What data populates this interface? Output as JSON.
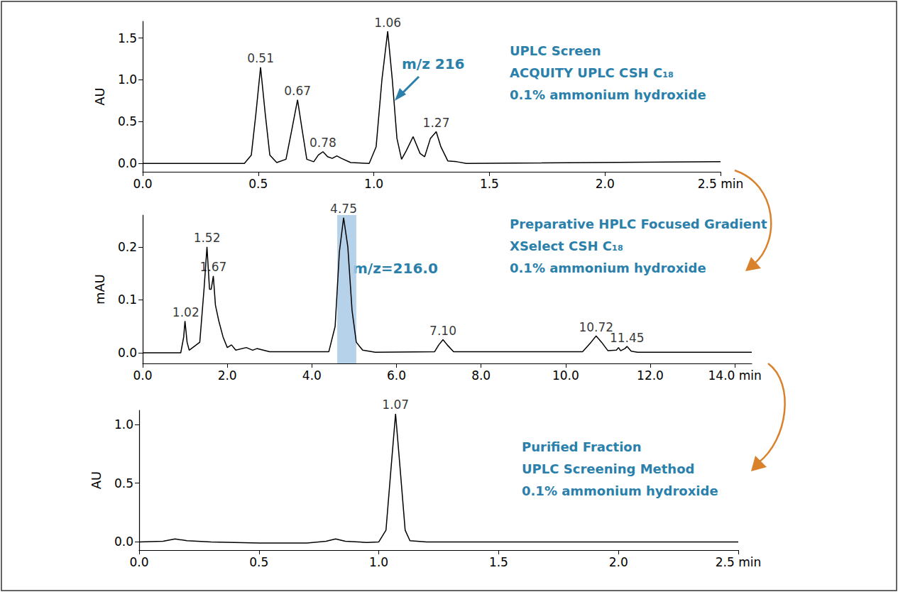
{
  "chart_data": [
    {
      "type": "line",
      "title": "UPLC Screen",
      "subtitle": [
        "ACQUITY UPLC CSH C₁₈",
        "0.1% ammonium hydroxide"
      ],
      "annotation": "m/z 216",
      "ylabel": "AU",
      "color": "#000000",
      "xlim": [
        0,
        2.5
      ],
      "xticks": [
        {
          "value": 0,
          "label": "0.0"
        },
        {
          "value": 0.5,
          "label": "0.5"
        },
        {
          "value": 1,
          "label": "1.0"
        },
        {
          "value": 1.5,
          "label": "1.5"
        },
        {
          "value": 2,
          "label": "2.0"
        },
        {
          "value": 2.5,
          "label": "2.5 min"
        }
      ],
      "ylim": [
        -0.1,
        1.7
      ],
      "yticks": [
        {
          "value": 0,
          "label": "0.0"
        },
        {
          "value": 0.5,
          "label": "0.5"
        },
        {
          "value": 1,
          "label": "1.0"
        },
        {
          "value": 1.5,
          "label": "1.5"
        }
      ],
      "x": [
        0,
        0.44,
        0.47,
        0.49,
        0.51,
        0.53,
        0.55,
        0.58,
        0.62,
        0.645,
        0.67,
        0.69,
        0.71,
        0.74,
        0.76,
        0.78,
        0.8,
        0.82,
        0.84,
        0.86,
        0.9,
        0.98,
        1.01,
        1.035,
        1.06,
        1.08,
        1.1,
        1.12,
        1.14,
        1.17,
        1.2,
        1.22,
        1.245,
        1.27,
        1.29,
        1.32,
        1.36,
        1.4,
        2.5
      ],
      "values": [
        0,
        0,
        0.1,
        0.6,
        1.15,
        0.6,
        0.1,
        0.01,
        0.05,
        0.4,
        0.76,
        0.4,
        0.05,
        0.02,
        0.1,
        0.14,
        0.08,
        0.06,
        0.09,
        0.06,
        0.01,
        0,
        0.2,
        1.0,
        1.58,
        1.0,
        0.3,
        0.05,
        0.15,
        0.32,
        0.12,
        0.08,
        0.3,
        0.38,
        0.2,
        0.03,
        0.02,
        0,
        0.02
      ],
      "peaks": [
        {
          "x": 0.51,
          "y": 1.15,
          "label": "0.51"
        },
        {
          "x": 0.67,
          "y": 0.76,
          "label": "0.67"
        },
        {
          "x": 0.78,
          "y": 0.14,
          "label": "0.78"
        },
        {
          "x": 1.06,
          "y": 1.58,
          "label": "1.06"
        },
        {
          "x": 1.27,
          "y": 0.38,
          "label": "1.27"
        }
      ]
    },
    {
      "type": "line",
      "title": "Preparative HPLC Focused Gradient",
      "subtitle": [
        "XSelect CSH C₁₈",
        "0.1% ammonium hydroxide"
      ],
      "annotation": "m/z=216.0",
      "ylabel": "mAU",
      "color": "#000000",
      "fraction": [
        4.6,
        5.05
      ],
      "xlim": [
        0,
        14.4
      ],
      "xticks": [
        {
          "value": 0,
          "label": "0.0"
        },
        {
          "value": 2,
          "label": "2.0"
        },
        {
          "value": 4,
          "label": "4.0"
        },
        {
          "value": 6,
          "label": "6.0"
        },
        {
          "value": 8,
          "label": "8.0"
        },
        {
          "value": 10,
          "label": "10.0"
        },
        {
          "value": 12,
          "label": "12.0"
        },
        {
          "value": 14,
          "label": "14.0 min"
        }
      ],
      "ylim": [
        -0.02,
        0.26
      ],
      "yticks": [
        {
          "value": 0,
          "label": "0.0"
        },
        0.1,
        0.2
      ],
      "x": [
        0,
        0.9,
        0.97,
        1.0,
        1.05,
        1.1,
        1.35,
        1.45,
        1.52,
        1.58,
        1.62,
        1.67,
        1.72,
        1.8,
        1.9,
        2.0,
        2.1,
        2.2,
        2.45,
        2.6,
        2.7,
        3.0,
        4.4,
        4.55,
        4.65,
        4.75,
        4.85,
        4.95,
        5.05,
        5.2,
        5.5,
        6.9,
        7.0,
        7.1,
        7.2,
        7.35,
        10.4,
        10.6,
        10.72,
        10.85,
        11.0,
        11.2,
        11.25,
        11.3,
        11.4,
        11.45,
        11.55,
        11.7,
        14.4
      ],
      "values": [
        0,
        0,
        0.03,
        0.06,
        0.02,
        0.005,
        0.02,
        0.12,
        0.2,
        0.12,
        0.12,
        0.145,
        0.09,
        0.06,
        0.03,
        0.01,
        0.015,
        0.005,
        0.01,
        0.005,
        0.008,
        0.002,
        0.002,
        0.05,
        0.19,
        0.255,
        0.2,
        0.08,
        0.02,
        0.005,
        0.001,
        0.002,
        0.015,
        0.025,
        0.015,
        0.002,
        0.002,
        0.02,
        0.032,
        0.02,
        0.004,
        0.005,
        0.01,
        0.004,
        0.008,
        0.012,
        0.003,
        0.001,
        0.001
      ],
      "peaks": [
        {
          "x": 1.02,
          "y": 0.06,
          "label": "1.02"
        },
        {
          "x": 1.52,
          "y": 0.2,
          "label": "1.52"
        },
        {
          "x": 1.67,
          "y": 0.145,
          "label": "1.67"
        },
        {
          "x": 4.75,
          "y": 0.255,
          "label": "4.75"
        },
        {
          "x": 7.1,
          "y": 0.025,
          "label": "7.10"
        },
        {
          "x": 10.72,
          "y": 0.032,
          "label": "10.72"
        },
        {
          "x": 11.45,
          "y": 0.012,
          "label": "11.45"
        }
      ]
    },
    {
      "type": "line",
      "title": "Purified Fraction",
      "subtitle": [
        "UPLC Screening Method",
        "0.1% ammonium hydroxide"
      ],
      "ylabel": "AU",
      "color": "#000000",
      "xlim": [
        0,
        2.5
      ],
      "xticks": [
        {
          "value": 0,
          "label": "0.0"
        },
        {
          "value": 0.5,
          "label": "0.5"
        },
        {
          "value": 1,
          "label": "1.0"
        },
        {
          "value": 1.5,
          "label": "1.5"
        },
        {
          "value": 2,
          "label": "2.0"
        },
        {
          "value": 2.5,
          "label": "2.5 min"
        }
      ],
      "ylim": [
        -0.07,
        1.12
      ],
      "yticks": [
        {
          "value": 0,
          "label": "0.0"
        },
        {
          "value": 0.5,
          "label": "0.5"
        },
        {
          "value": 1,
          "label": "1.0"
        }
      ],
      "x": [
        0,
        0.1,
        0.15,
        0.2,
        0.3,
        0.5,
        0.7,
        0.78,
        0.82,
        0.86,
        0.95,
        1.0,
        1.03,
        1.05,
        1.07,
        1.09,
        1.11,
        1.13,
        1.2,
        2.5
      ],
      "values": [
        0,
        0.005,
        0.025,
        0.01,
        0,
        -0.01,
        -0.01,
        0.005,
        0.025,
        0.005,
        -0.005,
        0,
        0.1,
        0.6,
        1.09,
        0.6,
        0.1,
        0.01,
        0,
        0
      ],
      "peaks": [
        {
          "x": 1.07,
          "y": 1.09,
          "label": "1.07"
        }
      ]
    }
  ]
}
